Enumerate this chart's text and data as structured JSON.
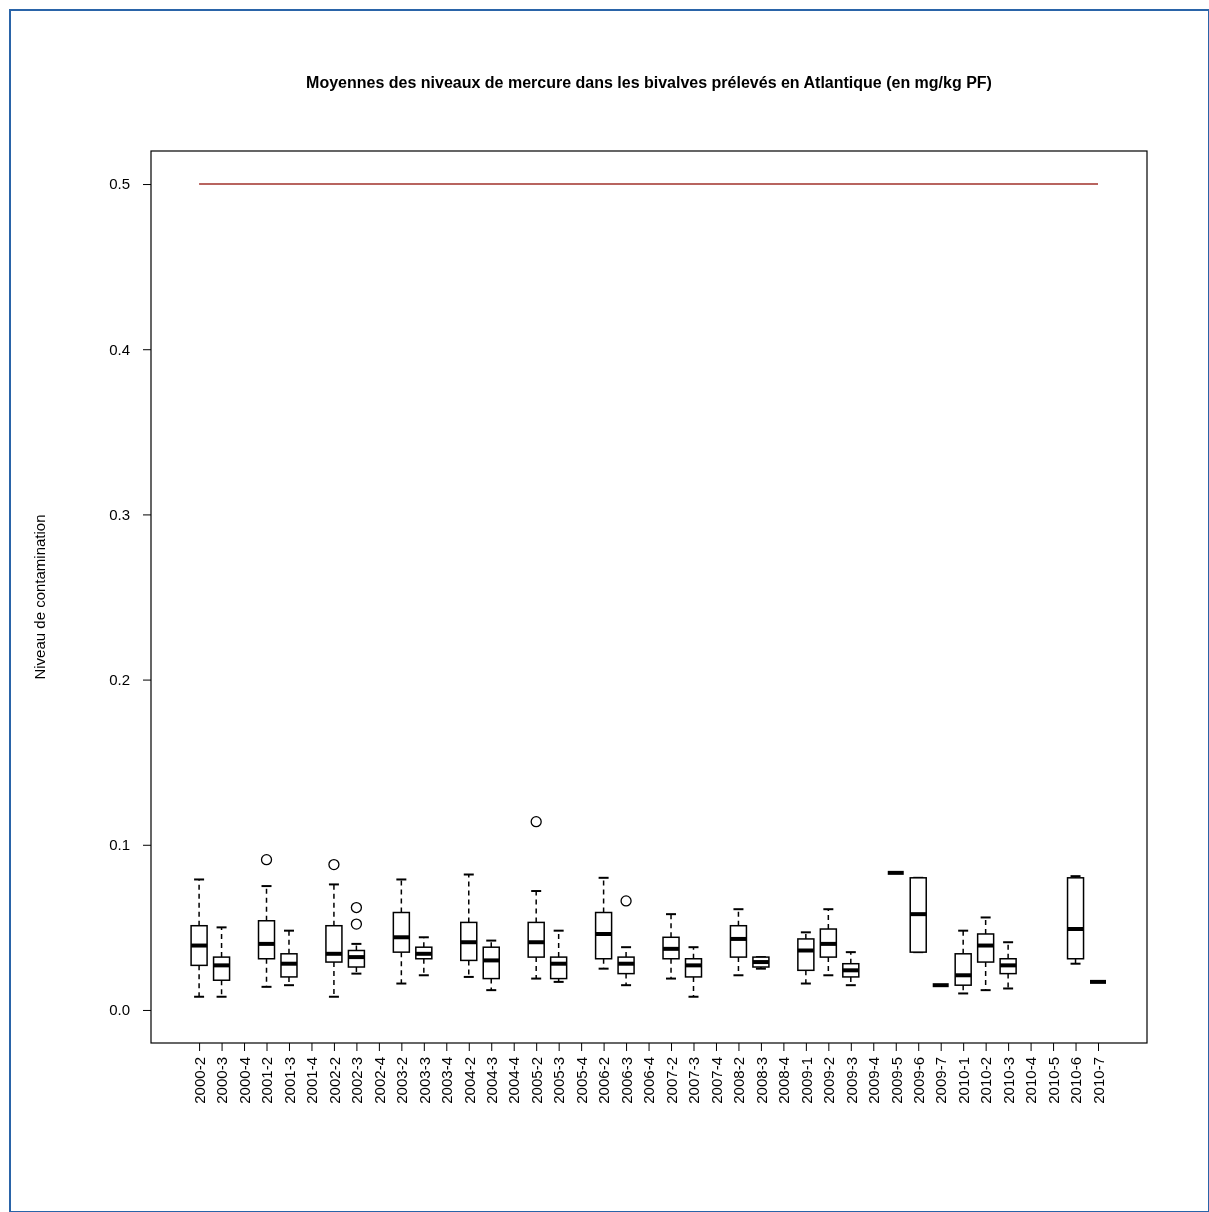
{
  "chart_data": {
    "type": "box",
    "title": "Moyennes des niveaux de mercure dans les bivalves prélevés en Atlantique (en mg/kg PF)",
    "ylabel": "Niveau de contamination",
    "categories": [
      "2000-2",
      "2000-3",
      "2000-4",
      "2001-2",
      "2001-3",
      "2001-4",
      "2002-2",
      "2002-3",
      "2002-4",
      "2003-2",
      "2003-3",
      "2003-4",
      "2004-2",
      "2004-3",
      "2004-4",
      "2005-2",
      "2005-3",
      "2005-4",
      "2006-2",
      "2006-3",
      "2006-4",
      "2007-2",
      "2007-3",
      "2007-4",
      "2008-2",
      "2008-3",
      "2008-4",
      "2009-1",
      "2009-2",
      "2009-3",
      "2009-4",
      "2009-5",
      "2009-6",
      "2009-7",
      "2010-1",
      "2010-2",
      "2010-3",
      "2010-4",
      "2010-5",
      "2010-6",
      "2010-7"
    ],
    "boxes": [
      {
        "low": 0.008,
        "q1": 0.027,
        "median": 0.039,
        "q3": 0.051,
        "high": 0.079
      },
      {
        "low": 0.008,
        "q1": 0.018,
        "median": 0.027,
        "q3": 0.032,
        "high": 0.05
      },
      null,
      {
        "low": 0.014,
        "q1": 0.031,
        "median": 0.04,
        "q3": 0.054,
        "high": 0.075,
        "outliers": [
          0.091
        ]
      },
      {
        "low": 0.015,
        "q1": 0.02,
        "median": 0.028,
        "q3": 0.034,
        "high": 0.048
      },
      null,
      {
        "low": 0.008,
        "q1": 0.029,
        "median": 0.034,
        "q3": 0.051,
        "high": 0.076,
        "outliers": [
          0.088
        ]
      },
      {
        "low": 0.022,
        "q1": 0.026,
        "median": 0.032,
        "q3": 0.036,
        "high": 0.04,
        "outliers": [
          0.052,
          0.062
        ]
      },
      null,
      {
        "low": 0.016,
        "q1": 0.035,
        "median": 0.044,
        "q3": 0.059,
        "high": 0.079
      },
      {
        "low": 0.021,
        "q1": 0.031,
        "median": 0.034,
        "q3": 0.038,
        "high": 0.044
      },
      null,
      {
        "low": 0.02,
        "q1": 0.03,
        "median": 0.041,
        "q3": 0.053,
        "high": 0.082
      },
      {
        "low": 0.012,
        "q1": 0.019,
        "median": 0.03,
        "q3": 0.038,
        "high": 0.042
      },
      null,
      {
        "low": 0.019,
        "q1": 0.032,
        "median": 0.041,
        "q3": 0.053,
        "high": 0.072,
        "outliers": [
          0.114
        ]
      },
      {
        "low": 0.017,
        "q1": 0.019,
        "median": 0.028,
        "q3": 0.032,
        "high": 0.048
      },
      null,
      {
        "low": 0.025,
        "q1": 0.031,
        "median": 0.046,
        "q3": 0.059,
        "high": 0.08
      },
      {
        "low": 0.015,
        "q1": 0.022,
        "median": 0.028,
        "q3": 0.032,
        "high": 0.038,
        "outliers": [
          0.066
        ]
      },
      null,
      {
        "low": 0.019,
        "q1": 0.031,
        "median": 0.037,
        "q3": 0.044,
        "high": 0.058
      },
      {
        "low": 0.008,
        "q1": 0.02,
        "median": 0.027,
        "q3": 0.031,
        "high": 0.038
      },
      null,
      {
        "low": 0.021,
        "q1": 0.032,
        "median": 0.043,
        "q3": 0.051,
        "high": 0.061
      },
      {
        "low": 0.025,
        "q1": 0.026,
        "median": 0.029,
        "q3": 0.032,
        "high": 0.032
      },
      null,
      {
        "low": 0.016,
        "q1": 0.024,
        "median": 0.036,
        "q3": 0.043,
        "high": 0.047
      },
      {
        "low": 0.021,
        "q1": 0.032,
        "median": 0.04,
        "q3": 0.049,
        "high": 0.061
      },
      {
        "low": 0.015,
        "q1": 0.02,
        "median": 0.024,
        "q3": 0.028,
        "high": 0.035
      },
      null,
      {
        "low": 0.083,
        "q1": 0.083,
        "median": 0.083,
        "q3": 0.083,
        "high": 0.083
      },
      {
        "low": 0.035,
        "q1": 0.035,
        "median": 0.058,
        "q3": 0.08,
        "high": 0.08
      },
      {
        "low": 0.015,
        "q1": 0.015,
        "median": 0.015,
        "q3": 0.015,
        "high": 0.015
      },
      {
        "low": 0.01,
        "q1": 0.015,
        "median": 0.021,
        "q3": 0.034,
        "high": 0.048
      },
      {
        "low": 0.012,
        "q1": 0.029,
        "median": 0.039,
        "q3": 0.046,
        "high": 0.056
      },
      {
        "low": 0.013,
        "q1": 0.022,
        "median": 0.027,
        "q3": 0.031,
        "high": 0.041
      },
      null,
      null,
      {
        "low": 0.028,
        "q1": 0.031,
        "median": 0.049,
        "q3": 0.08,
        "high": 0.081
      },
      {
        "low": 0.017,
        "q1": 0.017,
        "median": 0.017,
        "q3": 0.017,
        "high": 0.017
      }
    ],
    "ylim": [
      -0.02,
      0.52
    ],
    "yticks": [
      {
        "value": 0,
        "label": "0.0"
      },
      0.1,
      0.2,
      0.3,
      0.4,
      0.5
    ],
    "ref_lines": [
      {
        "axis": "y",
        "value": 0.5,
        "color": "#a0302a"
      }
    ],
    "grid": false
  }
}
